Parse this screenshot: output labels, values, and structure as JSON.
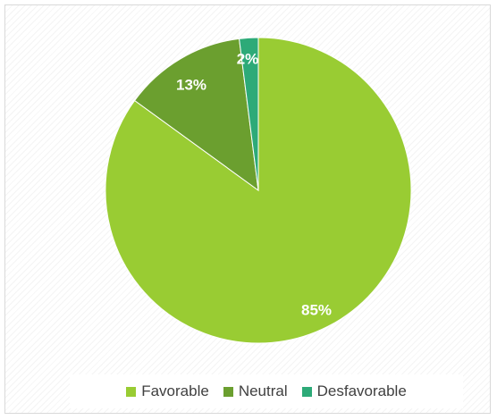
{
  "chart_data": {
    "type": "pie",
    "title": "",
    "categories": [
      "Favorable",
      "Neutral",
      "Desfavorable"
    ],
    "values": [
      85,
      13,
      2
    ],
    "labels": [
      "85%",
      "13%",
      "2%"
    ],
    "colors": [
      "#99cc33",
      "#6b9f2f",
      "#2daa78"
    ],
    "legend_position": "bottom",
    "start_angle": "12 o'clock",
    "direction": "clockwise"
  },
  "legend": {
    "items": [
      {
        "label": "Favorable",
        "color": "#99cc33"
      },
      {
        "label": "Neutral",
        "color": "#6b9f2f"
      },
      {
        "label": "Desfavorable",
        "color": "#2daa78"
      }
    ]
  }
}
